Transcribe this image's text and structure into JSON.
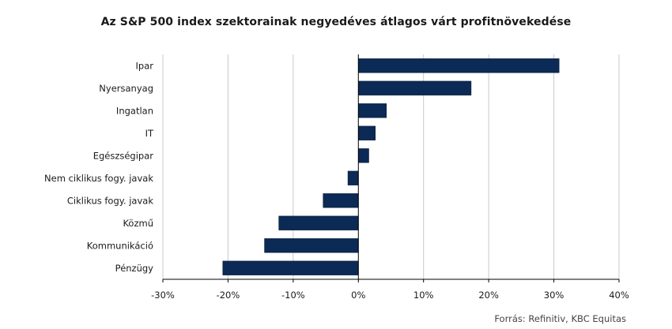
{
  "chart_data": {
    "type": "bar",
    "orientation": "horizontal",
    "title": "Az S&P 500 index szektorainak negyedéves átlagos várt profitnövekedése",
    "categories": [
      "Ipar",
      "Nyersanyag",
      "Ingatlan",
      "IT",
      "Egészségipar",
      "Nem ciklikus fogy. javak",
      "Ciklikus fogy. javak",
      "Közmű",
      "Kommunikáció",
      "Pénzügy"
    ],
    "values": [
      30.8,
      17.3,
      4.3,
      2.6,
      1.6,
      -1.6,
      -5.4,
      -12.2,
      -14.4,
      -20.8
    ],
    "unit": "%",
    "xlim": [
      -30,
      40
    ],
    "xticks": [
      -30,
      -20,
      -10,
      0,
      10,
      20,
      30,
      40
    ],
    "xtick_labels": [
      "-30%",
      "-20%",
      "-10%",
      "0%",
      "10%",
      "20%",
      "30%",
      "40%"
    ],
    "grid": "vertical",
    "bar_color": "#0b2a55",
    "source": "Forrás: Refinitiv, KBC Equitas"
  }
}
